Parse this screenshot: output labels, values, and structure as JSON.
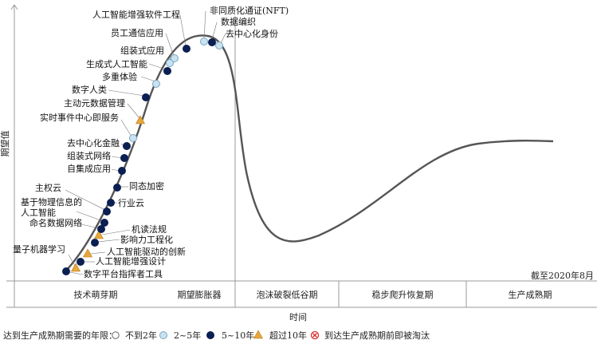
{
  "y_axis_label": "期望值",
  "x_axis_label": "时间",
  "date_note": "截至2020年8月",
  "phases": [
    "技术萌芽期",
    "期望膨胀器",
    "泡沫破裂低谷期",
    "稳步爬升恢复期",
    "生产成熟期"
  ],
  "legend": {
    "prefix": "达到生产成熟期需要的年限：",
    "items": [
      {
        "label": "不到2年",
        "symbol": "white-circle"
      },
      {
        "label": "2~5年",
        "symbol": "light-blue-circle"
      },
      {
        "label": "5~10年",
        "symbol": "navy-circle"
      },
      {
        "label": "超过10年",
        "symbol": "orange-triangle"
      },
      {
        "label": "到达生产成熟期前即被淘汰",
        "symbol": "red-x-circle"
      }
    ]
  },
  "colors": {
    "navy": "#0b1f52",
    "light_blue": "#c9e2f1",
    "light_blue_stroke": "#7aa6c2",
    "orange": "#e8a63a",
    "red": "#d63030",
    "curve": "#555555",
    "axis": "#999999"
  },
  "technologies": [
    {
      "label": "数字平台指挥者工具",
      "symbol": "navy-circle"
    },
    {
      "label": "量子机器学习",
      "symbol": "orange-triangle"
    },
    {
      "label": "人工智能增强设计",
      "symbol": "navy-circle"
    },
    {
      "label": "人工智能驱动的创新",
      "symbol": "orange-triangle"
    },
    {
      "label": "影响力工程化",
      "symbol": "navy-circle"
    },
    {
      "label": "机读法规",
      "symbol": "orange-triangle"
    },
    {
      "label": "命名数据网络",
      "symbol": "navy-circle"
    },
    {
      "label": "基于物理信息的\n人工智能",
      "symbol": "navy-circle"
    },
    {
      "label": "主权云",
      "symbol": "navy-circle"
    },
    {
      "label": "行业云",
      "symbol": "navy-circle"
    },
    {
      "label": "同态加密",
      "symbol": "navy-circle"
    },
    {
      "label": "自集成应用",
      "symbol": "navy-circle"
    },
    {
      "label": "组装式网络",
      "symbol": "navy-circle"
    },
    {
      "label": "去中心化金融",
      "symbol": "navy-circle"
    },
    {
      "label": "实时事件中心即服务",
      "symbol": "light-blue-circle"
    },
    {
      "label": "主动元数据管理",
      "symbol": "orange-triangle"
    },
    {
      "label": "数字人类",
      "symbol": "navy-circle"
    },
    {
      "label": "多重体验",
      "symbol": "light-blue-circle"
    },
    {
      "label": "生成式人工智能",
      "symbol": "navy-circle"
    },
    {
      "label": "组装式应用",
      "symbol": "light-blue-circle"
    },
    {
      "label": "员工通信应用",
      "symbol": "light-blue-circle"
    },
    {
      "label": "人工智能增强软件工程",
      "symbol": "navy-circle"
    },
    {
      "label": "非同质化通证(NFT)",
      "symbol": "light-blue-circle"
    },
    {
      "label": "数据编织",
      "symbol": "navy-circle"
    },
    {
      "label": "去中心化身份",
      "symbol": "light-blue-circle"
    }
  ]
}
